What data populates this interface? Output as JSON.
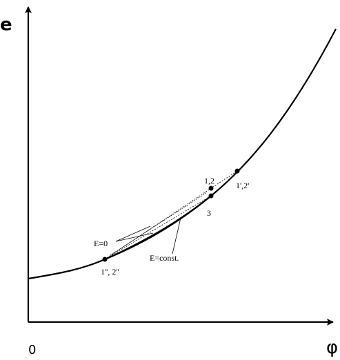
{
  "axes": {
    "y_title": "e",
    "x_title": "φ",
    "origin": "0"
  },
  "points": {
    "p12": "1,2",
    "p1p2p": "1',2'",
    "p3": "3",
    "p1pp2pp": "1'', 2''"
  },
  "annotations": {
    "e_zero": "E=0",
    "e_const": "E=const."
  }
}
